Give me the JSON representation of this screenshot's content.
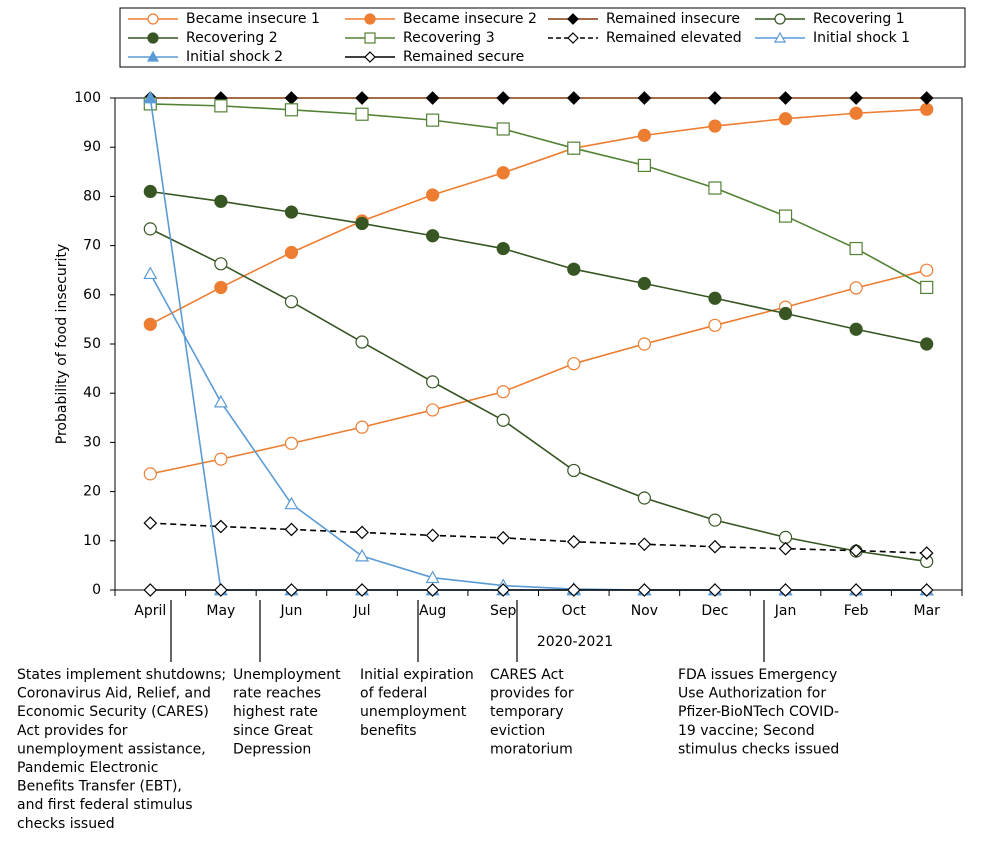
{
  "chart_data": {
    "type": "line",
    "categories": [
      "April",
      "May",
      "Jun",
      "Jul",
      "Aug",
      "Sep",
      "Oct",
      "Nov",
      "Dec",
      "Jan",
      "Feb",
      "Mar"
    ],
    "x_label": "2020-2021",
    "y_label": "Probability of food insecurity",
    "ylim": [
      0,
      100
    ],
    "yticks": [
      0,
      10,
      20,
      30,
      40,
      50,
      60,
      70,
      80,
      90,
      100
    ],
    "legend": "top",
    "series": [
      {
        "name": "Became insecure 1",
        "color": "#ed7d31",
        "marker": "circle",
        "filled": false,
        "dashed": false,
        "values": [
          23.6,
          26.6,
          29.8,
          33.1,
          36.6,
          40.3,
          46,
          50,
          53.8,
          57.5,
          61.4,
          65
        ]
      },
      {
        "name": "Became insecure 2",
        "color": "#ed7d31",
        "marker": "circle",
        "filled": true,
        "dashed": false,
        "values": [
          54,
          61.5,
          68.6,
          75,
          80.3,
          84.8,
          89.8,
          92.4,
          94.3,
          95.8,
          96.9,
          97.7
        ]
      },
      {
        "name": "Remained insecure",
        "color": "#000000",
        "line_color": "#843c0c",
        "marker": "diamond",
        "filled": true,
        "dashed": false,
        "values": [
          100,
          100,
          100,
          100,
          100,
          100,
          100,
          100,
          100,
          100,
          100,
          100
        ]
      },
      {
        "name": "Recovering 1",
        "color": "#375623",
        "marker": "circle",
        "filled": false,
        "dashed": false,
        "values": [
          73.4,
          66.3,
          58.6,
          50.4,
          42.3,
          34.5,
          24.3,
          18.7,
          14.2,
          10.7,
          7.9,
          5.8
        ]
      },
      {
        "name": "Recovering 2",
        "color": "#375623",
        "marker": "circle",
        "filled": true,
        "dashed": false,
        "values": [
          81,
          79,
          76.8,
          74.5,
          72,
          69.4,
          65.2,
          62.3,
          59.3,
          56.2,
          53,
          50
        ]
      },
      {
        "name": "Recovering 3",
        "color": "#548235",
        "marker": "square",
        "filled": false,
        "dashed": false,
        "values": [
          98.8,
          98.4,
          97.6,
          96.7,
          95.5,
          93.7,
          89.8,
          86.3,
          81.7,
          76,
          69.4,
          61.5
        ]
      },
      {
        "name": "Remained elevated",
        "color": "#000000",
        "marker": "diamond",
        "filled": false,
        "dashed": true,
        "values": [
          13.6,
          12.9,
          12.3,
          11.7,
          11.1,
          10.6,
          9.8,
          9.3,
          8.8,
          8.4,
          8,
          7.5
        ]
      },
      {
        "name": "Initial shock 1",
        "color": "#5b9bd5",
        "marker": "triangle",
        "filled": false,
        "dashed": false,
        "values": [
          64.3,
          38.2,
          17.5,
          6.9,
          2.5,
          0.9,
          0.2,
          0,
          0,
          0,
          0,
          0
        ]
      },
      {
        "name": "Initial shock 2",
        "color": "#5b9bd5",
        "marker": "triangle",
        "filled": true,
        "dashed": false,
        "values": [
          100,
          0,
          0,
          0,
          0,
          0,
          0,
          0,
          0,
          0,
          0,
          0
        ]
      },
      {
        "name": "Remained secure",
        "color": "#000000",
        "marker": "diamond",
        "filled": false,
        "dashed": false,
        "values": [
          0,
          0,
          0,
          0,
          0,
          0,
          0,
          0,
          0,
          0,
          0,
          0
        ]
      }
    ],
    "annotations": [
      {
        "lines": [
          "States implement shutdowns;",
          "Coronavirus Aid, Relief, and",
          "Economic Security (CARES)",
          "Act provides for",
          "unemployment assistance,",
          "Pandemic Electronic",
          "Benefits Transfer (EBT),",
          "and first federal stimulus",
          "checks issued"
        ]
      },
      {
        "lines": [
          "Unemployment",
          "rate reaches",
          "highest rate",
          "since Great",
          "Depression"
        ]
      },
      {
        "lines": [
          "Initial expiration",
          "of federal",
          "unemployment",
          "benefits"
        ]
      },
      {
        "lines": [
          "CARES Act",
          "provides for",
          "temporary",
          "eviction",
          "moratorium"
        ]
      },
      {
        "lines": [
          "FDA issues Emergency",
          "Use Authorization for",
          "Pfizer-BioNTech COVID-",
          "19 vaccine; Second",
          "stimulus checks issued"
        ]
      }
    ]
  }
}
